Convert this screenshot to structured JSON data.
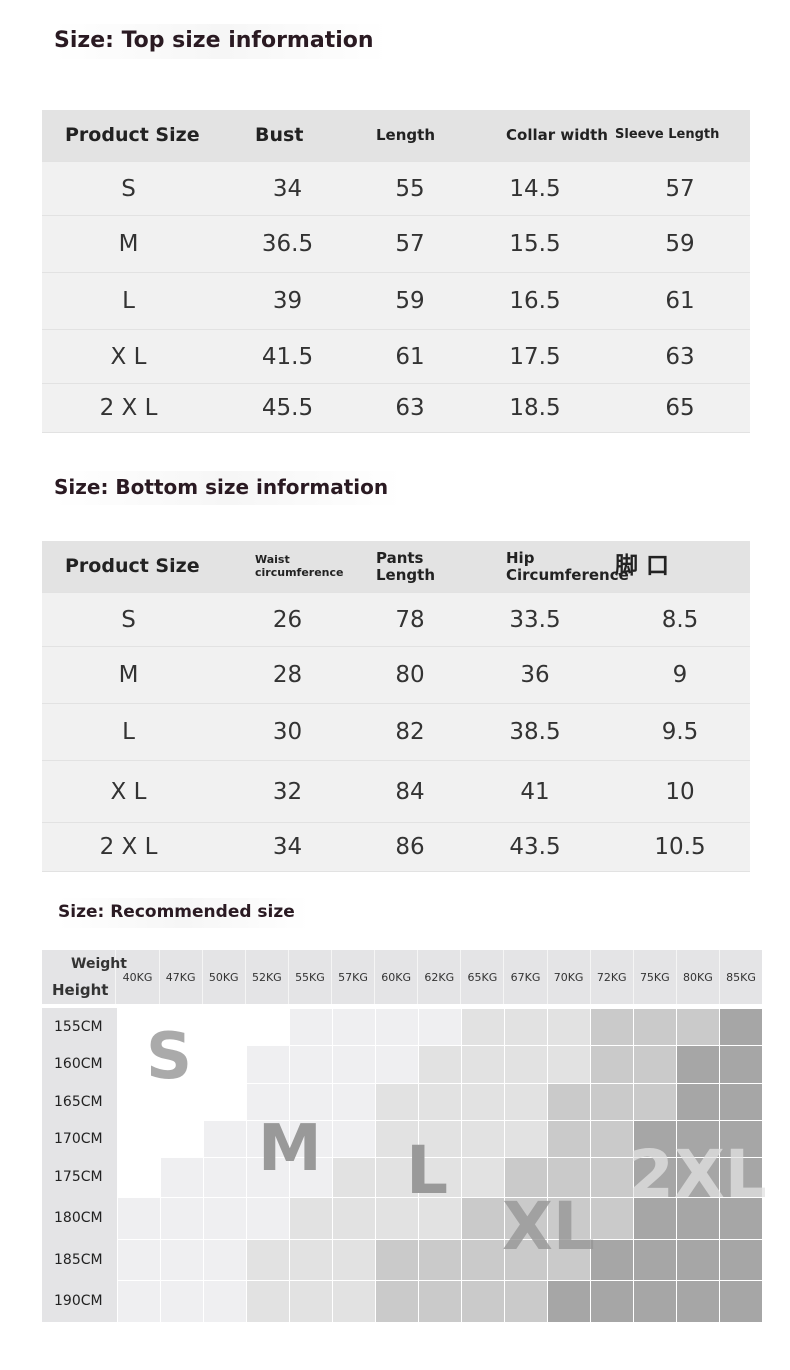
{
  "top": {
    "title": "Size: Top size information",
    "headers": [
      "Product Size",
      "Bust",
      "Length",
      "Collar width",
      "Sleeve Length"
    ],
    "rows": [
      [
        "S",
        "34",
        "55",
        "14.5",
        "57"
      ],
      [
        "M",
        "36.5",
        "57",
        "15.5",
        "59"
      ],
      [
        "L",
        "39",
        "59",
        "16.5",
        "61"
      ],
      [
        "X L",
        "41.5",
        "61",
        "17.5",
        "63"
      ],
      [
        "2 X L",
        "45.5",
        "63",
        "18.5",
        "65"
      ]
    ]
  },
  "bottom": {
    "title": "Size: Bottom size information",
    "headers": [
      "Product Size",
      "Waist circumference",
      "Pants Length",
      "Hip Circumference",
      "脚 口"
    ],
    "rows": [
      [
        "S",
        "26",
        "78",
        "33.5",
        "8.5"
      ],
      [
        "M",
        "28",
        "80",
        "36",
        "9"
      ],
      [
        "L",
        "30",
        "82",
        "38.5",
        "9.5"
      ],
      [
        "X L",
        "32",
        "84",
        "41",
        "10"
      ],
      [
        "2 X L",
        "34",
        "86",
        "43.5",
        "10.5"
      ]
    ]
  },
  "recommended": {
    "title": "Size: Recommended size",
    "weight_label": "Weight",
    "height_label": "Height",
    "weights": [
      "40KG",
      "47KG",
      "50KG",
      "52KG",
      "55KG",
      "57KG",
      "60KG",
      "62KG",
      "65KG",
      "67KG",
      "70KG",
      "72KG",
      "75KG",
      "80KG",
      "85KG"
    ],
    "heights": [
      "155CM",
      "160CM",
      "165CM",
      "170CM",
      "175CM",
      "180CM",
      "185CM",
      "190CM"
    ],
    "shade_colors": [
      "#ffffff",
      "#efeff1",
      "#e2e2e2",
      "#cacaca",
      "#a6a6a6"
    ],
    "shade_levels": [
      [
        0,
        0,
        0,
        0,
        1,
        1,
        1,
        1,
        2,
        2,
        2,
        3,
        3,
        3,
        4
      ],
      [
        0,
        0,
        0,
        1,
        1,
        1,
        1,
        2,
        2,
        2,
        2,
        3,
        3,
        4,
        4
      ],
      [
        0,
        0,
        0,
        1,
        1,
        1,
        2,
        2,
        2,
        2,
        3,
        3,
        3,
        4,
        4
      ],
      [
        0,
        0,
        1,
        1,
        1,
        1,
        2,
        2,
        2,
        2,
        3,
        3,
        4,
        4,
        4
      ],
      [
        0,
        1,
        1,
        1,
        1,
        2,
        2,
        2,
        2,
        3,
        3,
        3,
        4,
        4,
        4
      ],
      [
        1,
        1,
        1,
        1,
        2,
        2,
        2,
        2,
        3,
        3,
        3,
        3,
        4,
        4,
        4
      ],
      [
        1,
        1,
        1,
        2,
        2,
        2,
        3,
        3,
        3,
        3,
        3,
        4,
        4,
        4,
        4
      ],
      [
        1,
        1,
        1,
        2,
        2,
        2,
        3,
        3,
        3,
        3,
        4,
        4,
        4,
        4,
        4
      ]
    ],
    "zones": [
      "S",
      "M",
      "L",
      "XL",
      "2XL"
    ]
  }
}
